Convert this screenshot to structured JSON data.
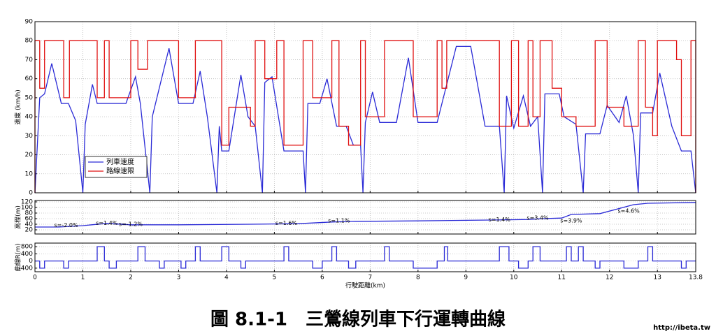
{
  "chart_data": [
    {
      "type": "line",
      "ylabel": "速度 (km/h)",
      "xlim": [
        0,
        13.8
      ],
      "ylim": [
        0,
        90
      ],
      "xticks": [
        0,
        1,
        2,
        3,
        4,
        5,
        6,
        7,
        8,
        9,
        10,
        11,
        12,
        13,
        13.8
      ],
      "yticks": [
        0,
        10,
        20,
        30,
        40,
        50,
        60,
        70,
        80,
        90
      ],
      "grid": true,
      "legend": "lower left",
      "series": [
        {
          "name": "列車速度",
          "color": "#2a2ad6",
          "x": [
            0,
            0.1,
            0.2,
            0.35,
            0.55,
            0.7,
            0.85,
            1.0,
            1.05,
            1.2,
            1.3,
            1.9,
            2.1,
            2.2,
            2.4,
            2.45,
            2.8,
            3.0,
            3.3,
            3.45,
            3.6,
            3.8,
            3.85,
            3.9,
            4.05,
            4.3,
            4.45,
            4.6,
            4.75,
            4.8,
            4.95,
            5.2,
            5.6,
            5.65,
            5.7,
            5.95,
            6.1,
            6.3,
            6.5,
            6.65,
            6.8,
            6.85,
            6.9,
            7.05,
            7.2,
            7.55,
            7.8,
            8.0,
            8.4,
            8.8,
            9.1,
            9.4,
            9.7,
            9.8,
            9.85,
            10.0,
            10.2,
            10.35,
            10.5,
            10.6,
            10.65,
            10.95,
            11.05,
            11.3,
            11.45,
            11.5,
            11.8,
            11.95,
            12.2,
            12.35,
            12.5,
            12.6,
            12.65,
            12.9,
            13.05,
            13.3,
            13.5,
            13.7,
            13.8
          ],
          "values": [
            0,
            50,
            52,
            68,
            47,
            47,
            38,
            0,
            36,
            57,
            47,
            47,
            61,
            47,
            0,
            40,
            76,
            47,
            47,
            64,
            40,
            0,
            35,
            22,
            22,
            62,
            40,
            35,
            0,
            58,
            61,
            22,
            22,
            0,
            47,
            47,
            60,
            35,
            35,
            25,
            25,
            0,
            37,
            53,
            37,
            37,
            71,
            37,
            37,
            77,
            77,
            35,
            35,
            0,
            51,
            34,
            51,
            35,
            40,
            0,
            52,
            52,
            40,
            36,
            0,
            31,
            31,
            46,
            37,
            51,
            30,
            0,
            42,
            42,
            63,
            35,
            22,
            22,
            0
          ]
        },
        {
          "name": "路線速限",
          "color": "#e01010",
          "x": [
            0,
            0,
            0.1,
            0.1,
            0.2,
            0.2,
            0.6,
            0.6,
            0.72,
            0.72,
            1.3,
            1.3,
            1.45,
            1.45,
            1.55,
            1.55,
            2.0,
            2.0,
            2.15,
            2.15,
            2.35,
            2.35,
            3.0,
            3.0,
            3.35,
            3.35,
            3.9,
            3.9,
            4.05,
            4.05,
            4.5,
            4.5,
            4.6,
            4.6,
            4.8,
            4.8,
            5.05,
            5.05,
            5.2,
            5.2,
            5.6,
            5.6,
            5.8,
            5.8,
            6.2,
            6.2,
            6.35,
            6.35,
            6.55,
            6.55,
            6.8,
            6.8,
            6.9,
            6.9,
            7.3,
            7.3,
            7.9,
            7.9,
            8.4,
            8.4,
            8.5,
            8.5,
            8.6,
            8.6,
            9.7,
            9.7,
            9.95,
            9.95,
            10.1,
            10.1,
            10.3,
            10.3,
            10.4,
            10.4,
            10.55,
            10.55,
            10.8,
            10.8,
            11.0,
            11.0,
            11.3,
            11.3,
            11.7,
            11.7,
            11.95,
            11.95,
            12.3,
            12.3,
            12.6,
            12.6,
            12.75,
            12.75,
            12.9,
            12.9,
            13.0,
            13.0,
            13.4,
            13.4,
            13.5,
            13.5,
            13.7,
            13.7,
            13.8,
            13.8
          ],
          "values": [
            0,
            80,
            80,
            55,
            55,
            80,
            80,
            50,
            50,
            80,
            80,
            50,
            50,
            80,
            80,
            50,
            50,
            80,
            80,
            65,
            65,
            80,
            80,
            50,
            50,
            80,
            80,
            25,
            25,
            45,
            45,
            35,
            35,
            80,
            80,
            60,
            60,
            80,
            80,
            25,
            25,
            80,
            80,
            50,
            50,
            80,
            80,
            35,
            35,
            25,
            25,
            80,
            80,
            40,
            40,
            80,
            80,
            40,
            40,
            80,
            80,
            55,
            55,
            80,
            80,
            35,
            35,
            80,
            80,
            35,
            35,
            80,
            80,
            40,
            40,
            80,
            80,
            55,
            55,
            40,
            40,
            35,
            35,
            80,
            80,
            45,
            45,
            35,
            35,
            80,
            80,
            45,
            45,
            30,
            30,
            80,
            80,
            70,
            70,
            30,
            30,
            80,
            80,
            0
          ]
        }
      ]
    },
    {
      "type": "line",
      "ylabel": "高程(m)",
      "xlim": [
        0,
        13.8
      ],
      "ylim": [
        5,
        125
      ],
      "xticks": [
        0,
        1,
        2,
        3,
        4,
        5,
        6,
        7,
        8,
        9,
        10,
        11,
        12,
        13,
        13.8
      ],
      "yticks": [
        20,
        40,
        60,
        80,
        100,
        120
      ],
      "grid": true,
      "annotations": [
        "s=-2.0%",
        "s=1.4%",
        "s=-1.2%",
        "s=1.6%",
        "s=1.1%",
        "s=1.4%",
        "s=3.4%",
        "s=3.9%",
        "s=4.6%"
      ],
      "series": [
        {
          "color": "#2a2ad6",
          "x": [
            0,
            0.5,
            1.0,
            1.5,
            2.0,
            3.0,
            4.5,
            5.5,
            6.2,
            6.6,
            8.0,
            9.5,
            10.3,
            10.6,
            11.0,
            11.2,
            11.8,
            12.5,
            12.8,
            13.8
          ],
          "values": [
            30,
            30,
            35,
            43,
            38,
            38,
            40,
            42,
            48,
            50,
            52,
            55,
            57,
            60,
            62,
            75,
            78,
            110,
            115,
            118
          ]
        }
      ]
    },
    {
      "type": "line",
      "ylabel": "曲線R(m)",
      "xlabel": "行駛距離(km)",
      "xlim": [
        0,
        13.8
      ],
      "ylim": [
        -600,
        1000
      ],
      "xticks": [
        0,
        1,
        2,
        3,
        4,
        5,
        6,
        7,
        8,
        9,
        10,
        11,
        12,
        13,
        13.8
      ],
      "yticks": [
        -400,
        0,
        400,
        800
      ],
      "grid": true,
      "series": [
        {
          "color": "#2a2ad6",
          "x": [
            0,
            0.1,
            0.1,
            0.2,
            0.2,
            0.6,
            0.6,
            0.7,
            0.7,
            1.3,
            1.3,
            1.45,
            1.45,
            1.55,
            1.55,
            1.7,
            1.7,
            2.15,
            2.15,
            2.3,
            2.3,
            2.6,
            2.6,
            2.7,
            2.7,
            3.05,
            3.05,
            3.15,
            3.15,
            3.35,
            3.35,
            3.45,
            3.45,
            3.9,
            3.9,
            4.05,
            4.05,
            4.3,
            4.3,
            4.4,
            4.4,
            5.2,
            5.2,
            5.3,
            5.3,
            5.8,
            5.8,
            6.0,
            6.0,
            6.2,
            6.2,
            6.3,
            6.3,
            6.55,
            6.55,
            6.7,
            6.7,
            7.3,
            7.3,
            7.4,
            7.4,
            7.9,
            7.9,
            8.4,
            8.4,
            8.55,
            8.55,
            8.62,
            8.62,
            9.7,
            9.7,
            9.9,
            9.9,
            10.1,
            10.1,
            10.3,
            10.3,
            10.4,
            10.4,
            10.55,
            10.55,
            11.1,
            11.1,
            11.2,
            11.2,
            11.35,
            11.35,
            11.45,
            11.45,
            11.7,
            11.7,
            11.8,
            11.8,
            12.3,
            12.3,
            12.6,
            12.6,
            12.8,
            12.8,
            12.9,
            12.9,
            13.5,
            13.5,
            13.6,
            13.6,
            13.8
          ],
          "values": [
            0,
            0,
            -400,
            -400,
            0,
            0,
            -400,
            -400,
            0,
            0,
            800,
            800,
            0,
            0,
            -400,
            -400,
            0,
            0,
            800,
            800,
            0,
            0,
            -400,
            -400,
            0,
            0,
            -400,
            -400,
            0,
            0,
            800,
            800,
            0,
            0,
            800,
            800,
            0,
            0,
            -400,
            -400,
            0,
            0,
            800,
            800,
            0,
            0,
            -400,
            -400,
            0,
            0,
            800,
            800,
            0,
            0,
            -400,
            -400,
            0,
            0,
            800,
            800,
            0,
            0,
            -400,
            -400,
            0,
            0,
            800,
            800,
            0,
            0,
            800,
            800,
            0,
            0,
            -400,
            -400,
            0,
            0,
            800,
            800,
            0,
            0,
            800,
            800,
            0,
            0,
            800,
            800,
            0,
            0,
            -400,
            -400,
            0,
            0,
            -400,
            -400,
            0,
            0,
            800,
            800,
            0,
            0,
            -400,
            -400,
            0,
            0
          ]
        }
      ]
    }
  ],
  "caption": "圖 8.1-1　三鶯線列車下行運轉曲線",
  "watermark": "http://ibeta.tw"
}
